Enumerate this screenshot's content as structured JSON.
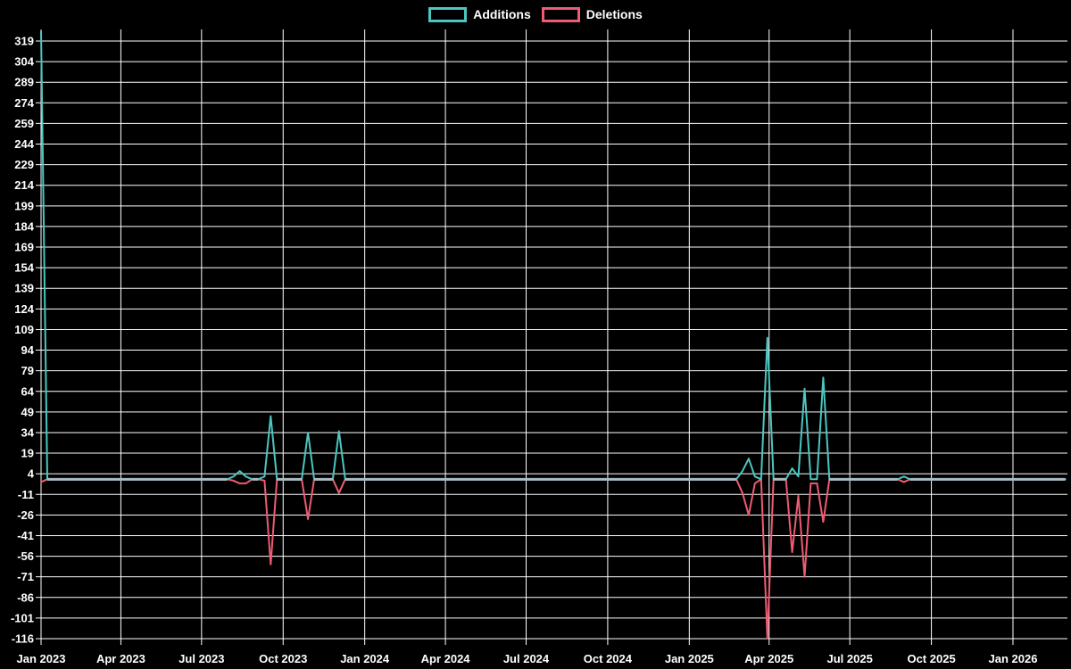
{
  "chart_data": {
    "type": "line",
    "title": "",
    "legend_position": "top-center",
    "legend": [
      {
        "label": "Additions",
        "color": "#4bc7c0"
      },
      {
        "label": "Deletions",
        "color": "#ef5b73"
      }
    ],
    "grid": {
      "shown": true,
      "color": "#ffffff",
      "background": "#000000",
      "text_color": "#ffffff"
    },
    "zero_line_color": "#a8bcc5",
    "y_axis": {
      "min": -116,
      "max": 319,
      "step": 15,
      "tick_labels": [
        319,
        304,
        289,
        274,
        259,
        244,
        229,
        214,
        199,
        184,
        169,
        154,
        139,
        124,
        109,
        94,
        79,
        64,
        49,
        34,
        19,
        4,
        -11,
        -26,
        -41,
        -56,
        -71,
        -86,
        -101,
        -116
      ]
    },
    "x_axis": {
      "tick_labels": [
        "Jan 2023",
        "Apr 2023",
        "Jul 2023",
        "Oct 2023",
        "Jan 2024",
        "Apr 2024",
        "Jul 2024",
        "Oct 2024",
        "Jan 2025",
        "Apr 2025",
        "Jul 2025",
        "Oct 2025",
        "Jan 2026"
      ],
      "tick_day_offsets": [
        0,
        90,
        181,
        273,
        365,
        456,
        547,
        639,
        731,
        821,
        912,
        1004,
        1096
      ],
      "unit": "weekly points since Jan 2023"
    },
    "num_weeks": 166,
    "series": [
      {
        "name": "Additions",
        "color": "#4bc7c0",
        "default_value": 0,
        "points_sparse": {
          "0": 326,
          "31": 2,
          "32": 6,
          "33": 2,
          "36": 2,
          "37": 46,
          "43": 34,
          "48": 35,
          "113": 6,
          "114": 15,
          "115": 2,
          "117": 103,
          "121": 8,
          "122": 2,
          "123": 66,
          "126": 74,
          "139": 2
        }
      },
      {
        "name": "Deletions",
        "color": "#ef5b73",
        "default_value": 0,
        "points_sparse": {
          "0": -2,
          "31": -1,
          "32": -3,
          "33": -3,
          "36": -1,
          "37": -62,
          "43": -29,
          "48": -10,
          "113": -10,
          "114": -26,
          "115": -3,
          "117": -116,
          "121": -53,
          "122": -12,
          "123": -71,
          "124": -3,
          "125": -3,
          "126": -31,
          "139": -2
        }
      }
    ]
  }
}
